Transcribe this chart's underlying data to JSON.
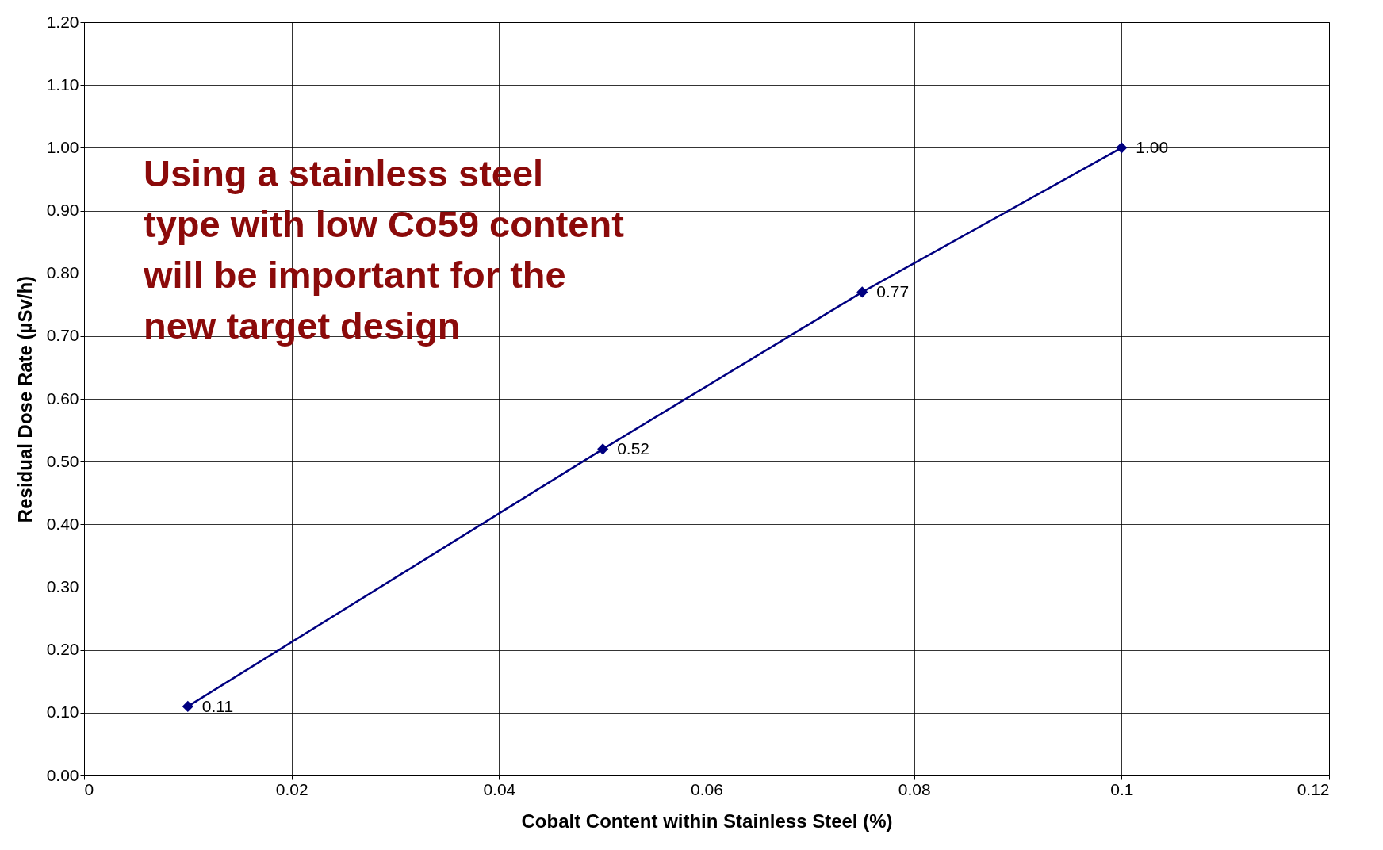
{
  "chart_data": {
    "type": "line",
    "xlabel": "Cobalt Content within Stainless Steel (%)",
    "ylabel": "Residual Dose Rate (µSv/h)",
    "annotations": [
      "Using a stainless steel type with low Co59 content will be important for the new target design"
    ],
    "x": [
      0.01,
      0.05,
      0.075,
      0.1
    ],
    "series": [
      {
        "color": "#000080",
        "values": [
          0.11,
          0.52,
          0.77,
          1.0
        ],
        "value_labels": [
          "0.11",
          "0.52",
          "0.77",
          "1.00"
        ]
      }
    ],
    "xlim": [
      0,
      0.12
    ],
    "xticks": [
      0,
      0.02,
      0.04,
      0.06,
      0.08,
      0.1,
      0.12
    ],
    "ylim": [
      0,
      1.2
    ],
    "yticks": [
      {
        "value": 0,
        "label": "0.00"
      },
      {
        "value": 0.1,
        "label": "0.10"
      },
      {
        "value": 0.2,
        "label": "0.20"
      },
      {
        "value": 0.3,
        "label": "0.30"
      },
      {
        "value": 0.4,
        "label": "0.40"
      },
      {
        "value": 0.5,
        "label": "0.50"
      },
      {
        "value": 0.6,
        "label": "0.60"
      },
      {
        "value": 0.7,
        "label": "0.70"
      },
      {
        "value": 0.8,
        "label": "0.80"
      },
      {
        "value": 0.9,
        "label": "0.90"
      },
      {
        "value": 1.0,
        "label": "1.00"
      },
      {
        "value": 1.1,
        "label": "1.10"
      },
      {
        "value": 1.2,
        "label": "1.20"
      }
    ],
    "grid": true,
    "marker": "diamond",
    "line_style": "solid"
  }
}
